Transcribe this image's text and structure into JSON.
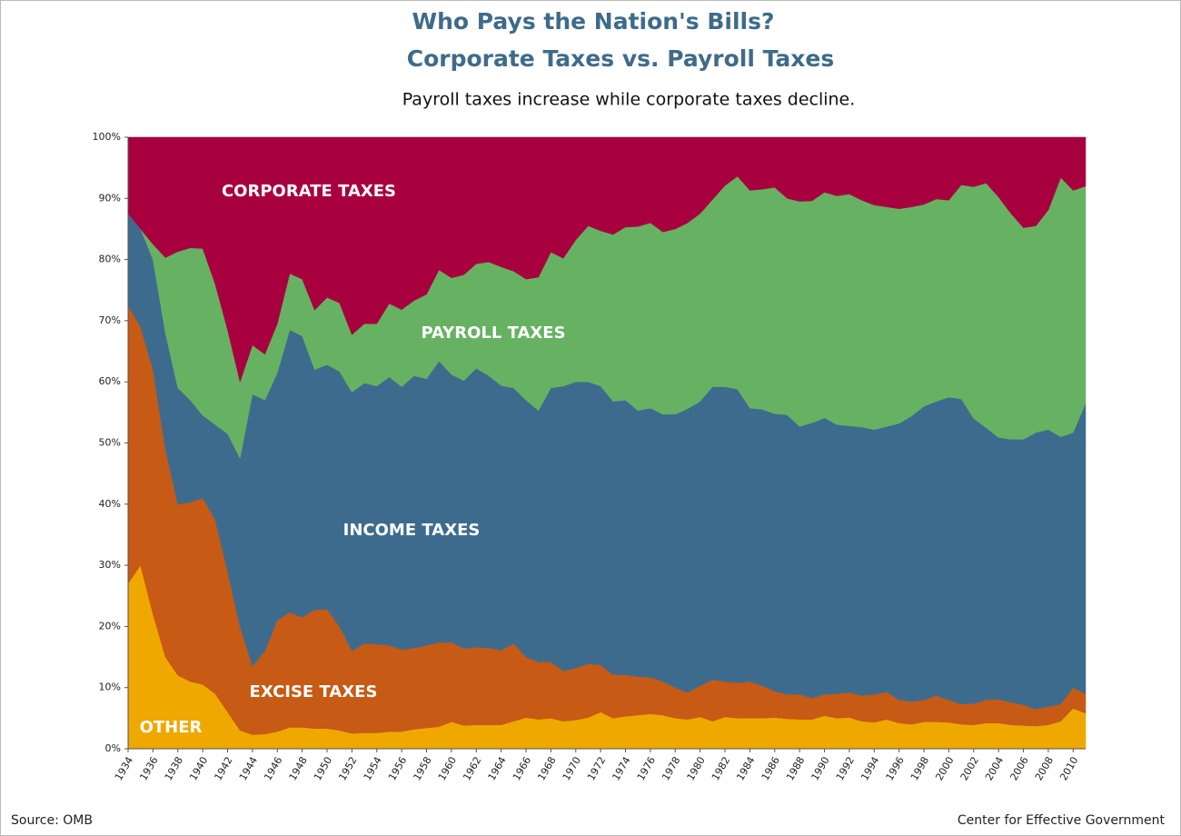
{
  "chart_data": {
    "type": "stacked_area",
    "title": "Who Pays the Nation's Bills?",
    "subtitle_1": "Corporate Taxes vs. Payroll Taxes",
    "subtitle_2": "Payroll taxes increase while corporate taxes decline.",
    "source": "Source: OMB",
    "credit": "Center for Effective Government",
    "x": [
      1934,
      1935,
      1936,
      1937,
      1938,
      1939,
      1940,
      1941,
      1942,
      1943,
      1944,
      1945,
      1946,
      1947,
      1948,
      1949,
      1950,
      1951,
      1952,
      1953,
      1954,
      1955,
      1956,
      1957,
      1958,
      1959,
      1960,
      1961,
      1962,
      1963,
      1964,
      1965,
      1966,
      1967,
      1968,
      1969,
      1970,
      1971,
      1972,
      1973,
      1974,
      1975,
      1976,
      1977,
      1978,
      1979,
      1980,
      1981,
      1982,
      1983,
      1984,
      1985,
      1986,
      1987,
      1988,
      1989,
      1990,
      1991,
      1992,
      1993,
      1994,
      1995,
      1996,
      1997,
      1998,
      1999,
      2000,
      2001,
      2002,
      2003,
      2004,
      2005,
      2006,
      2007,
      2008,
      2009,
      2010,
      2011
    ],
    "xlim": [
      1934,
      2011
    ],
    "xticks": [
      1934,
      1936,
      1938,
      1940,
      1942,
      1944,
      1946,
      1948,
      1950,
      1952,
      1954,
      1956,
      1958,
      1960,
      1962,
      1964,
      1966,
      1968,
      1970,
      1972,
      1974,
      1976,
      1978,
      1980,
      1982,
      1984,
      1986,
      1988,
      1990,
      1992,
      1994,
      1996,
      1998,
      2000,
      2002,
      2004,
      2006,
      2008,
      2010
    ],
    "ylim": [
      0,
      100
    ],
    "yticks": [
      {
        "value": 0,
        "label": "0%"
      },
      {
        "value": 10,
        "label": "10%"
      },
      {
        "value": 20,
        "label": "20%"
      },
      {
        "value": 30,
        "label": "30%"
      },
      {
        "value": 40,
        "label": "40%"
      },
      {
        "value": 50,
        "label": "50%"
      },
      {
        "value": 60,
        "label": "60%"
      },
      {
        "value": 70,
        "label": "70%"
      },
      {
        "value": 80,
        "label": "80%"
      },
      {
        "value": 90,
        "label": "90%"
      },
      {
        "value": 100,
        "label": "100%"
      }
    ],
    "series": [
      {
        "name": "OTHER",
        "color": "#efa800",
        "values": [
          27,
          30,
          22,
          15,
          12,
          11,
          10.5,
          9,
          6,
          3,
          2.3,
          2.4,
          2.8,
          3.5,
          3.5,
          3.3,
          3.3,
          3,
          2.5,
          2.6,
          2.6,
          2.8,
          2.8,
          3.2,
          3.4,
          3.6,
          4.4,
          3.8,
          3.9,
          3.9,
          3.9,
          4.5,
          5.1,
          4.8,
          5.0,
          4.5,
          4.7,
          5.1,
          6.0,
          5.0,
          5.3,
          5.5,
          5.7,
          5.5,
          5.0,
          4.8,
          5.2,
          4.5,
          5.2,
          5.0,
          5.0,
          5.0,
          5.1,
          4.9,
          4.8,
          4.8,
          5.4,
          5.0,
          5.1,
          4.5,
          4.3,
          4.8,
          4.2,
          4.0,
          4.4,
          4.4,
          4.3,
          4.0,
          3.9,
          4.2,
          4.2,
          3.9,
          3.8,
          3.7,
          3.9,
          4.5,
          6.6,
          5.8
        ]
      },
      {
        "name": "EXCISE TAXES",
        "color": "#c75a14",
        "values": [
          45.5,
          39,
          40,
          34,
          28,
          29.3,
          30.5,
          28.5,
          23,
          17,
          11.2,
          13.6,
          18.2,
          18.8,
          18,
          19.4,
          19.5,
          17,
          13.5,
          14.6,
          14.5,
          14.1,
          13.4,
          13.3,
          13.5,
          13.8,
          13,
          12.6,
          12.7,
          12.6,
          12.2,
          12.7,
          9.9,
          9.4,
          9.2,
          8.2,
          8.5,
          8.8,
          7.7,
          7.1,
          6.8,
          6.3,
          6.0,
          5.5,
          5.0,
          4.4,
          5.1,
          6.8,
          5.8,
          5.8,
          6.0,
          5.3,
          4.3,
          4.0,
          4.1,
          3.5,
          3.5,
          4.0,
          4.1,
          4.2,
          4.6,
          4.5,
          3.8,
          3.7,
          3.6,
          4.3,
          3.7,
          3.3,
          3.5,
          3.8,
          3.9,
          3.7,
          3.4,
          2.8,
          3.0,
          2.8,
          3.4,
          3.2
        ]
      },
      {
        "name": "INCOME TAXES",
        "color": "#3d6b8e",
        "values": [
          15,
          16,
          18,
          19,
          19,
          16.7,
          13.5,
          15.5,
          22.5,
          27.5,
          44.5,
          41,
          40.5,
          46.2,
          46,
          39.3,
          40,
          41.7,
          42.3,
          42.6,
          42.2,
          43.9,
          43,
          44.5,
          43.6,
          46,
          43.8,
          43.8,
          45.6,
          44.5,
          43.3,
          41.8,
          42,
          41.1,
          44.8,
          46.6,
          46.8,
          46.1,
          45.6,
          44.7,
          44.9,
          43.5,
          44,
          43.7,
          44.7,
          46.4,
          46.5,
          47.9,
          48.2,
          48,
          44.7,
          45.2,
          45.4,
          45.7,
          43.8,
          45,
          45.2,
          44,
          43.6,
          43.9,
          43.3,
          43.4,
          45.2,
          46.7,
          48,
          48.1,
          49.5,
          49.9,
          46.6,
          44.5,
          42.8,
          43,
          43.4,
          45.2,
          45.3,
          43.7,
          41.7,
          47.5
        ]
      },
      {
        "name": "PAYROLL TAXES",
        "color": "#66b262",
        "values": [
          0,
          0,
          2.5,
          12.3,
          22.3,
          24.9,
          27.3,
          23,
          17,
          12.5,
          8,
          7.5,
          8,
          9.2,
          9.3,
          9.7,
          11,
          11.2,
          9.4,
          9.7,
          10.2,
          12,
          12.6,
          12.3,
          13.8,
          14.9,
          15.8,
          17.3,
          17.1,
          18.6,
          19.4,
          19.1,
          19.8,
          21.8,
          22.2,
          20.9,
          23.2,
          25.5,
          25.4,
          27.3,
          28.3,
          30.1,
          30.3,
          29.8,
          30.3,
          30.4,
          30.7,
          30.6,
          32.9,
          34.8,
          35.6,
          36,
          37,
          35.4,
          36.8,
          36.3,
          36.9,
          37.4,
          37.9,
          37.1,
          36.7,
          35.9,
          35.1,
          34.2,
          33,
          33.1,
          32.2,
          35,
          37.9,
          40,
          39.3,
          36.9,
          34.6,
          33.8,
          35.9,
          42.4,
          39.6,
          35.5
        ]
      },
      {
        "name": "CORPORATE TAXES",
        "color": "#a8003f",
        "values": [
          12.5,
          15,
          17.5,
          19.7,
          18.7,
          18.1,
          18.2,
          24,
          31.5,
          40,
          34,
          35.5,
          30.5,
          22.3,
          23.2,
          28.3,
          26.2,
          27.1,
          32.3,
          30.5,
          30.5,
          27.2,
          28.2,
          26.7,
          25.7,
          21.7,
          23,
          22.5,
          20.7,
          20.4,
          21.2,
          21.9,
          23.2,
          22.9,
          18.8,
          19.8,
          16.8,
          14.5,
          15.3,
          15.9,
          14.7,
          14.6,
          14,
          15.5,
          15,
          14,
          12.5,
          10.2,
          7.9,
          6.4,
          8.7,
          8.5,
          8.2,
          10,
          10.5,
          10.4,
          9,
          9.6,
          9.3,
          10.3,
          11.1,
          11.4,
          11.7,
          11.4,
          11,
          10.1,
          10.3,
          7.8,
          8.1,
          7.5,
          9.8,
          12.5,
          14.8,
          14.5,
          11.9,
          6.6,
          8.7,
          8
        ]
      }
    ]
  }
}
